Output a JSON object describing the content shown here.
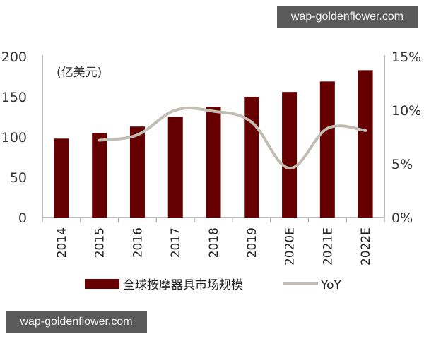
{
  "watermarks": {
    "top": "wap-goldenflower.com",
    "bottom": "wap-goldenflower.com"
  },
  "chart_data": {
    "type": "bar",
    "title": "",
    "unit_label": "(亿美元)",
    "categories": [
      "2014",
      "2015",
      "2016",
      "2017",
      "2018",
      "2019",
      "2020E",
      "2021E",
      "2022E"
    ],
    "series": [
      {
        "name": "全球按摩器具市场规模",
        "type": "bar",
        "axis": "left",
        "color": "#660000",
        "values": [
          98,
          105,
          113,
          125,
          137,
          150,
          156,
          169,
          183
        ]
      },
      {
        "name": "YoY",
        "type": "line",
        "axis": "right",
        "color": "#c2bdb3",
        "values": [
          null,
          7.2,
          7.7,
          10.0,
          9.9,
          8.9,
          4.6,
          8.3,
          8.1
        ]
      }
    ],
    "left_axis": {
      "ylim": [
        0,
        200
      ],
      "ticks": [
        "0",
        "50",
        "100",
        "150",
        "200"
      ]
    },
    "right_axis": {
      "ylim": [
        0,
        15
      ],
      "ticks": [
        "0%",
        "5%",
        "10%",
        "15%"
      ]
    },
    "xlabel": "",
    "ylabel": "",
    "grid": false,
    "legend_position": "bottom"
  }
}
